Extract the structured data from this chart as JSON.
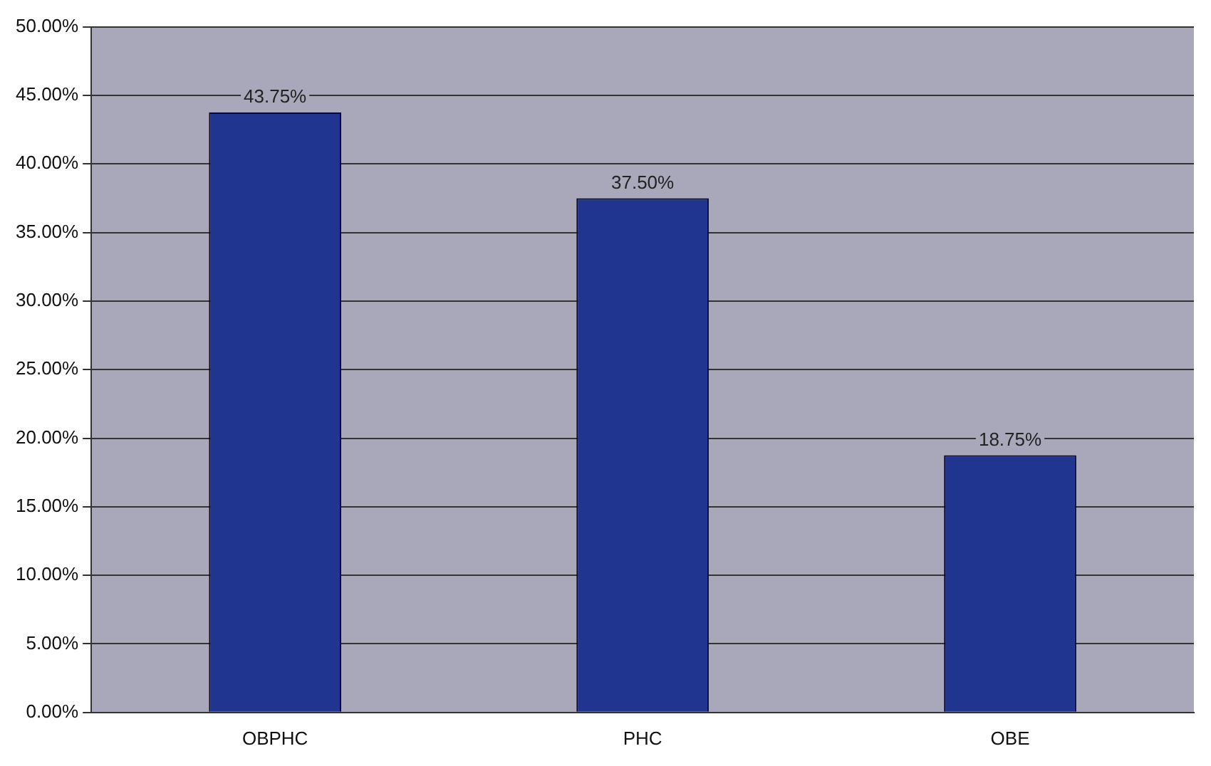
{
  "chart_data": {
    "type": "bar",
    "categories": [
      "OBPHC",
      "PHC",
      "OBE"
    ],
    "values": [
      43.75,
      37.5,
      18.75
    ],
    "value_labels": [
      "43.75%",
      "37.50%",
      "18.75%"
    ],
    "color": "#1f3590",
    "ylim": [
      0,
      50
    ],
    "yticks": [
      {
        "value": 0,
        "label": "0.00%"
      },
      {
        "value": 5,
        "label": "5.00%"
      },
      {
        "value": 10,
        "label": "10.00%"
      },
      {
        "value": 15,
        "label": "15.00%"
      },
      {
        "value": 20,
        "label": "20.00%"
      },
      {
        "value": 25,
        "label": "25.00%"
      },
      {
        "value": 30,
        "label": "30.00%"
      },
      {
        "value": 35,
        "label": "35.00%"
      },
      {
        "value": 40,
        "label": "40.00%"
      },
      {
        "value": 45,
        "label": "45.00%"
      },
      {
        "value": 50,
        "label": "50.00%"
      }
    ],
    "grid": "y",
    "legend": false
  }
}
